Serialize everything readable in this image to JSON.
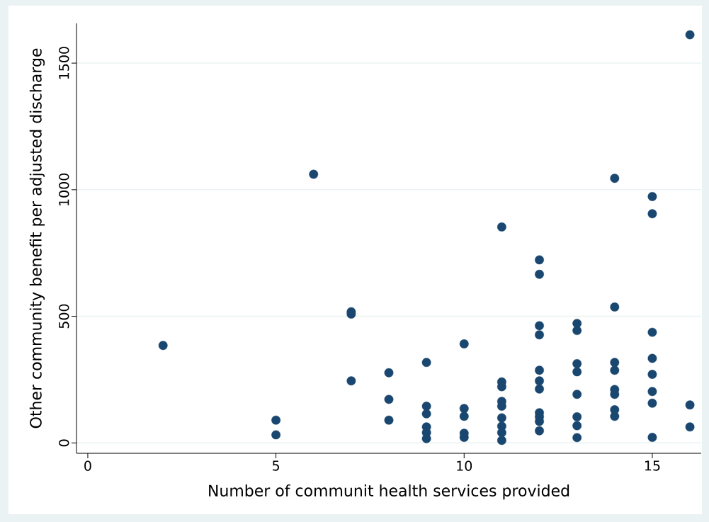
{
  "chart_data": {
    "type": "scatter",
    "xlabel": "Number of communit health services provided",
    "ylabel": "Other community benefit per adjusted discharge",
    "xlim": [
      -0.3,
      16.3
    ],
    "ylim": [
      -41,
      1657
    ],
    "xticks": [
      0,
      5,
      10,
      15
    ],
    "yticks": [
      0,
      500,
      1000,
      1500
    ],
    "grid": "y",
    "marker": "circle",
    "color": "#1a476f",
    "x": [
      2,
      5,
      5,
      6,
      7,
      7,
      7,
      8,
      8,
      8,
      9,
      9,
      9,
      9,
      9,
      9,
      10,
      10,
      10,
      10,
      10,
      11,
      11,
      11,
      11,
      11,
      11,
      11,
      11,
      11,
      12,
      12,
      12,
      12,
      12,
      12,
      12,
      12,
      12,
      12,
      12,
      13,
      13,
      13,
      13,
      13,
      13,
      13,
      13,
      14,
      14,
      14,
      14,
      14,
      14,
      14,
      14,
      15,
      15,
      15,
      15,
      15,
      15,
      15,
      15,
      16,
      16,
      16
    ],
    "values": [
      385,
      90,
      32,
      1061,
      518,
      509,
      245,
      277,
      172,
      90,
      318,
      145,
      115,
      63,
      41,
      17,
      391,
      136,
      105,
      38,
      22,
      853,
      241,
      222,
      164,
      145,
      99,
      66,
      41,
      10,
      723,
      666,
      463,
      427,
      287,
      245,
      213,
      119,
      103,
      85,
      48,
      472,
      444,
      313,
      281,
      192,
      103,
      68,
      21,
      1045,
      537,
      318,
      287,
      211,
      192,
      131,
      105,
      973,
      905,
      437,
      334,
      271,
      203,
      157,
      22,
      1612,
      150,
      63
    ]
  }
}
